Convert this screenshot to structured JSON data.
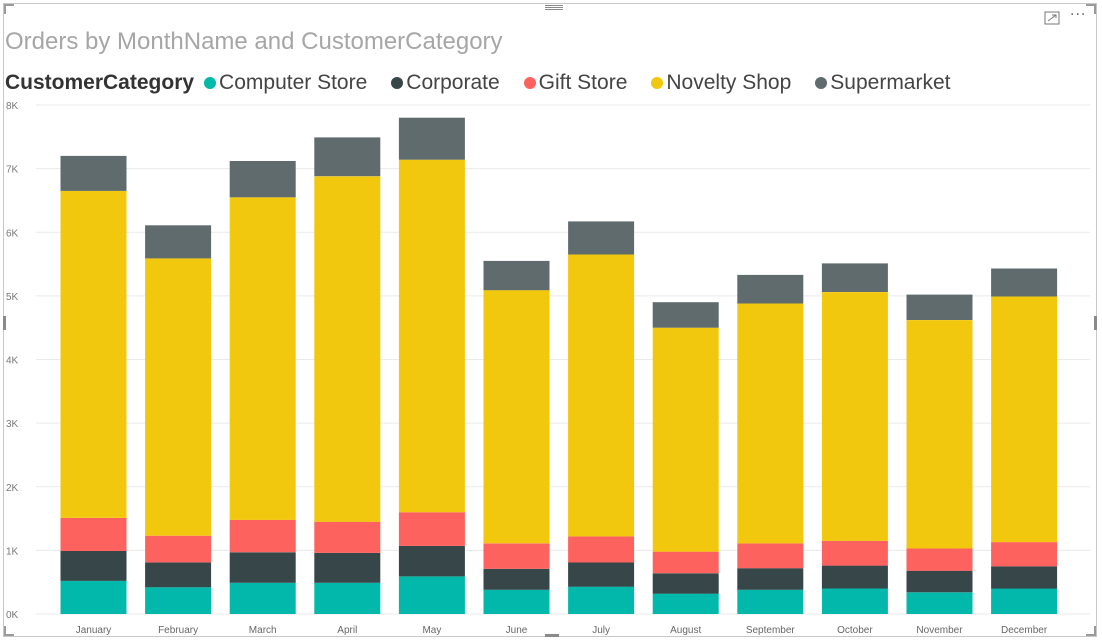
{
  "visual": {
    "title": "Orders by MonthName and CustomerCategory",
    "legend_title": "CustomerCategory",
    "focus_icon": "focus-mode-icon",
    "more_icon": "more-options-icon",
    "more_label": "···"
  },
  "chart_data": {
    "type": "bar",
    "stacked": true,
    "title": "Orders by MonthName and CustomerCategory",
    "xlabel": "",
    "ylabel": "",
    "ylim": [
      0,
      8000
    ],
    "yticks": [
      {
        "value": 0,
        "label": "0K"
      },
      {
        "value": 1000,
        "label": "1K"
      },
      {
        "value": 2000,
        "label": "2K"
      },
      {
        "value": 3000,
        "label": "3K"
      },
      {
        "value": 4000,
        "label": "4K"
      },
      {
        "value": 5000,
        "label": "5K"
      },
      {
        "value": 6000,
        "label": "6K"
      },
      {
        "value": 7000,
        "label": "7K"
      },
      {
        "value": 8000,
        "label": "8K"
      }
    ],
    "grid": true,
    "legend_position": "top-left",
    "categories": [
      "January",
      "February",
      "March",
      "April",
      "May",
      "June",
      "July",
      "August",
      "September",
      "October",
      "November",
      "December"
    ],
    "series": [
      {
        "name": "Computer Store",
        "color": "#01b8aa",
        "values": [
          520,
          420,
          490,
          490,
          590,
          380,
          430,
          320,
          380,
          400,
          340,
          400
        ]
      },
      {
        "name": "Corporate",
        "color": "#374649",
        "values": [
          470,
          390,
          480,
          470,
          480,
          330,
          380,
          320,
          340,
          360,
          340,
          350
        ]
      },
      {
        "name": "Gift Store",
        "color": "#fd625e",
        "values": [
          520,
          420,
          510,
          490,
          530,
          400,
          410,
          340,
          390,
          390,
          350,
          380
        ]
      },
      {
        "name": "Novelty Shop",
        "color": "#f2c80f",
        "values": [
          5140,
          4360,
          5070,
          5430,
          5540,
          3980,
          4430,
          3520,
          3770,
          3910,
          3590,
          3860
        ]
      },
      {
        "name": "Supermarket",
        "color": "#5f6b6d",
        "values": [
          550,
          520,
          570,
          610,
          660,
          460,
          520,
          400,
          450,
          450,
          400,
          440
        ]
      }
    ]
  }
}
